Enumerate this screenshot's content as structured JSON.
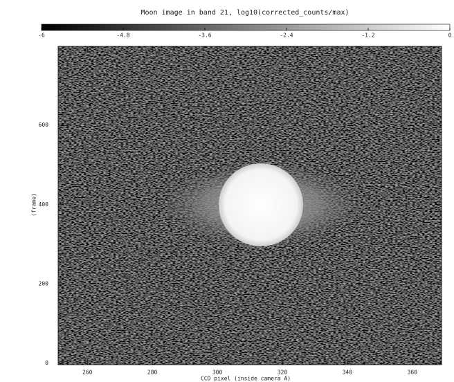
{
  "chart_data": {
    "type": "heatmap",
    "title": "Moon image in band 21, log10(corrected_counts/max)",
    "x_label": "CCD pixel (inside camera A)",
    "y_label": "(frame)",
    "xlim": [
      251,
      369
    ],
    "xticks": [
      260,
      280,
      300,
      320,
      340,
      360
    ],
    "ylim": [
      -4,
      798
    ],
    "yticks": [
      0,
      200,
      400,
      600
    ],
    "colorbar_lim": [
      -6,
      0
    ],
    "colorbar_ticks": [
      -6,
      -4.8,
      -3.6,
      -2.4,
      -1.2,
      0
    ],
    "colormap": [
      "#000000",
      "#ffffff"
    ]
  }
}
